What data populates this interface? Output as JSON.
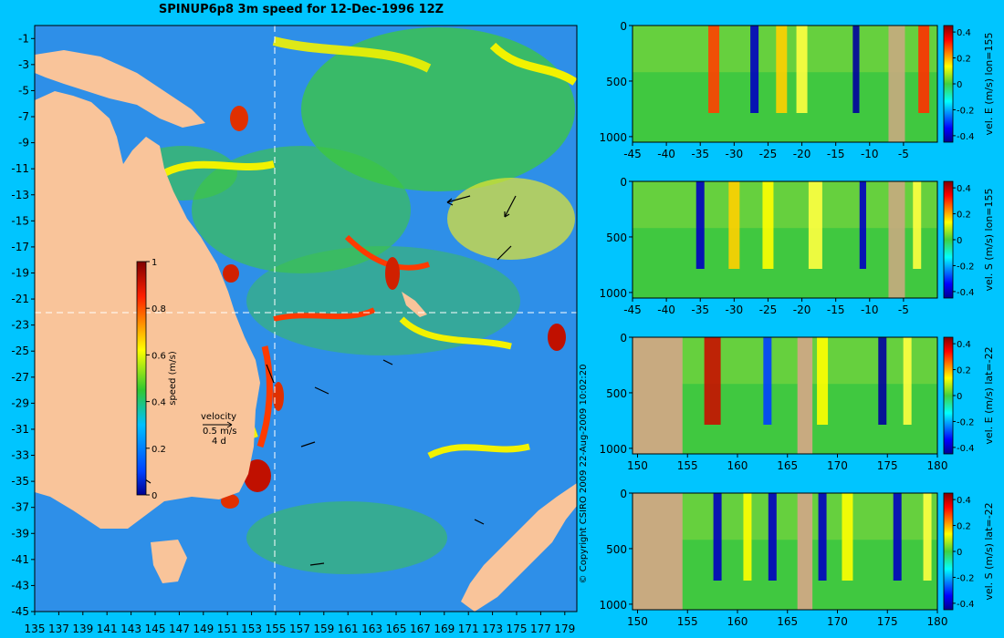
{
  "title": "SPINUP6p8 3m speed for 12-Dec-1996 12Z",
  "copyright": "© Copyright CSIRO 2009   22-Aug-2009 10:02:20",
  "colors": {
    "background": "#00c5ff",
    "land": "#f9c49a",
    "section_land": "#c8aa80"
  },
  "chart_data": [
    {
      "type": "heatmap",
      "name": "surface-speed-map",
      "x_ticks": [
        "135",
        "137",
        "139",
        "141",
        "143",
        "145",
        "147",
        "149",
        "151",
        "153",
        "155",
        "157",
        "159",
        "161",
        "163",
        "165",
        "167",
        "169",
        "171",
        "173",
        "175",
        "177",
        "179"
      ],
      "y_ticks": [
        "-1",
        "-3",
        "-5",
        "-7",
        "-9",
        "-11",
        "-13",
        "-15",
        "-17",
        "-19",
        "-21",
        "-23",
        "-25",
        "-27",
        "-29",
        "-31",
        "-33",
        "-35",
        "-37",
        "-39",
        "-41",
        "-43",
        "-45"
      ],
      "xlim": [
        135,
        180
      ],
      "ylim": [
        -45,
        0
      ],
      "colorbar": {
        "label": "speed (m/s)",
        "ticks": [
          "1",
          "0.8",
          "0.6",
          "0.4",
          "0.2",
          "0"
        ],
        "range": [
          0,
          1
        ]
      },
      "velocity_legend": {
        "title": "velocity",
        "scale": "0.5 m/s",
        "duration": "4 d"
      },
      "section_lon": 155,
      "section_lat": -22
    },
    {
      "type": "heatmap",
      "name": "section-vel-E-lon155",
      "ylabel": "vel. E (m/s) lon=155",
      "x_ticks": [
        "-45",
        "-40",
        "-35",
        "-30",
        "-25",
        "-20",
        "-15",
        "-10",
        "-5"
      ],
      "y_ticks": [
        "0",
        "500",
        "1000"
      ],
      "colorbar_ticks": [
        "0.4",
        "0.2",
        "0",
        "-0.2",
        "-0.4"
      ],
      "clim": [
        -0.45,
        0.45
      ]
    },
    {
      "type": "heatmap",
      "name": "section-vel-S-lon155",
      "ylabel": "vel. S (m/s) lon=155",
      "x_ticks": [
        "-45",
        "-40",
        "-35",
        "-30",
        "-25",
        "-20",
        "-15",
        "-10",
        "-5"
      ],
      "y_ticks": [
        "0",
        "500",
        "1000"
      ],
      "colorbar_ticks": [
        "0.4",
        "0.2",
        "0",
        "-0.2",
        "-0.4"
      ],
      "clim": [
        -0.45,
        0.45
      ]
    },
    {
      "type": "heatmap",
      "name": "section-vel-E-lat-22",
      "ylabel": "vel. E (m/s) lat=-22",
      "x_ticks": [
        "150",
        "155",
        "160",
        "165",
        "170",
        "175",
        "180"
      ],
      "y_ticks": [
        "0",
        "500",
        "1000"
      ],
      "colorbar_ticks": [
        "0.4",
        "0.2",
        "0",
        "-0.2",
        "-0.4"
      ],
      "clim": [
        -0.45,
        0.45
      ]
    },
    {
      "type": "heatmap",
      "name": "section-vel-S-lat-22",
      "ylabel": "vel. S (m/s) lat=-22",
      "x_ticks": [
        "150",
        "155",
        "160",
        "165",
        "170",
        "175",
        "180"
      ],
      "y_ticks": [
        "0",
        "500",
        "1000"
      ],
      "colorbar_ticks": [
        "0.4",
        "0.2",
        "0",
        "-0.2",
        "-0.4"
      ],
      "clim": [
        -0.45,
        0.45
      ]
    }
  ]
}
